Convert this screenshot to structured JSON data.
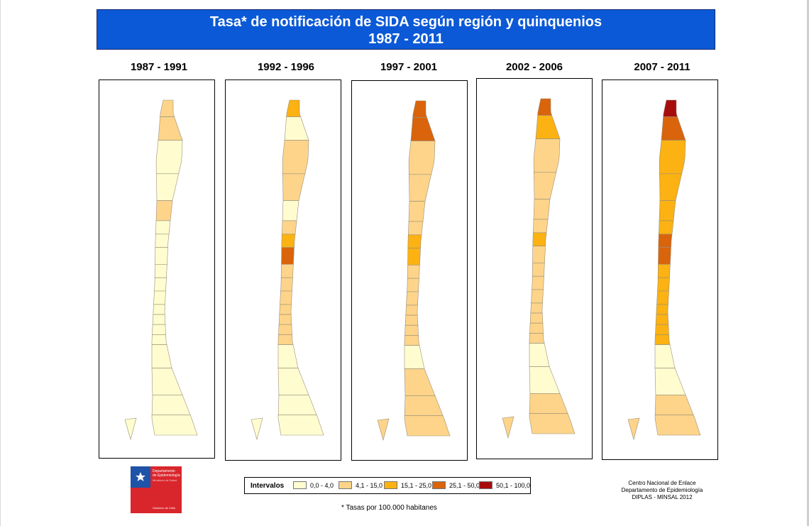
{
  "title": {
    "line1": "Tasa* de notificación de SIDA según región y quinquenios",
    "line2": "1987 - 2011"
  },
  "colors": {
    "banner": "#0b59d6",
    "legend": [
      "#fffdd0",
      "#fdd48a",
      "#fbb212",
      "#d9640c",
      "#a80d0d"
    ]
  },
  "periods": [
    {
      "label": "1987 - 1991",
      "classes": [
        1,
        1,
        0,
        0,
        1,
        0,
        0,
        0,
        0,
        0,
        0,
        0,
        0,
        0,
        0,
        0,
        0,
        0,
        0
      ]
    },
    {
      "label": "1992 - 1996",
      "classes": [
        2,
        0,
        1,
        1,
        0,
        1,
        2,
        3,
        1,
        1,
        1,
        1,
        1,
        1,
        1,
        0,
        0,
        0,
        0
      ]
    },
    {
      "label": "1997 - 2001",
      "classes": [
        3,
        3,
        1,
        1,
        1,
        1,
        2,
        2,
        1,
        1,
        1,
        1,
        1,
        1,
        1,
        0,
        1,
        1,
        1
      ]
    },
    {
      "label": "2002 - 2006",
      "classes": [
        3,
        2,
        1,
        1,
        1,
        1,
        2,
        1,
        1,
        1,
        1,
        1,
        1,
        1,
        1,
        0,
        0,
        1,
        1
      ]
    },
    {
      "label": "2007 - 2011",
      "classes": [
        4,
        3,
        2,
        2,
        2,
        2,
        3,
        3,
        2,
        2,
        2,
        2,
        2,
        2,
        2,
        0,
        0,
        1,
        1
      ]
    }
  ],
  "legend": {
    "title": "Intervalos",
    "items": [
      "0,0 - 4,0",
      "4,1 - 15,0",
      "15,1 - 25,0",
      "25,1 - 50,0",
      "50,1 - 100,0"
    ]
  },
  "footnote": "* Tasas por 100.000 habitanes",
  "credits": [
    "Centro Nacional de Enlace",
    "Departamento de Epidemiología",
    "DIPLAS - MINSAL 2012"
  ],
  "logo": {
    "line1": "Departamento",
    "line2": "de Epidemiología",
    "line3": "Ministerio de Salud",
    "footer": "Gobierno de Chile"
  }
}
